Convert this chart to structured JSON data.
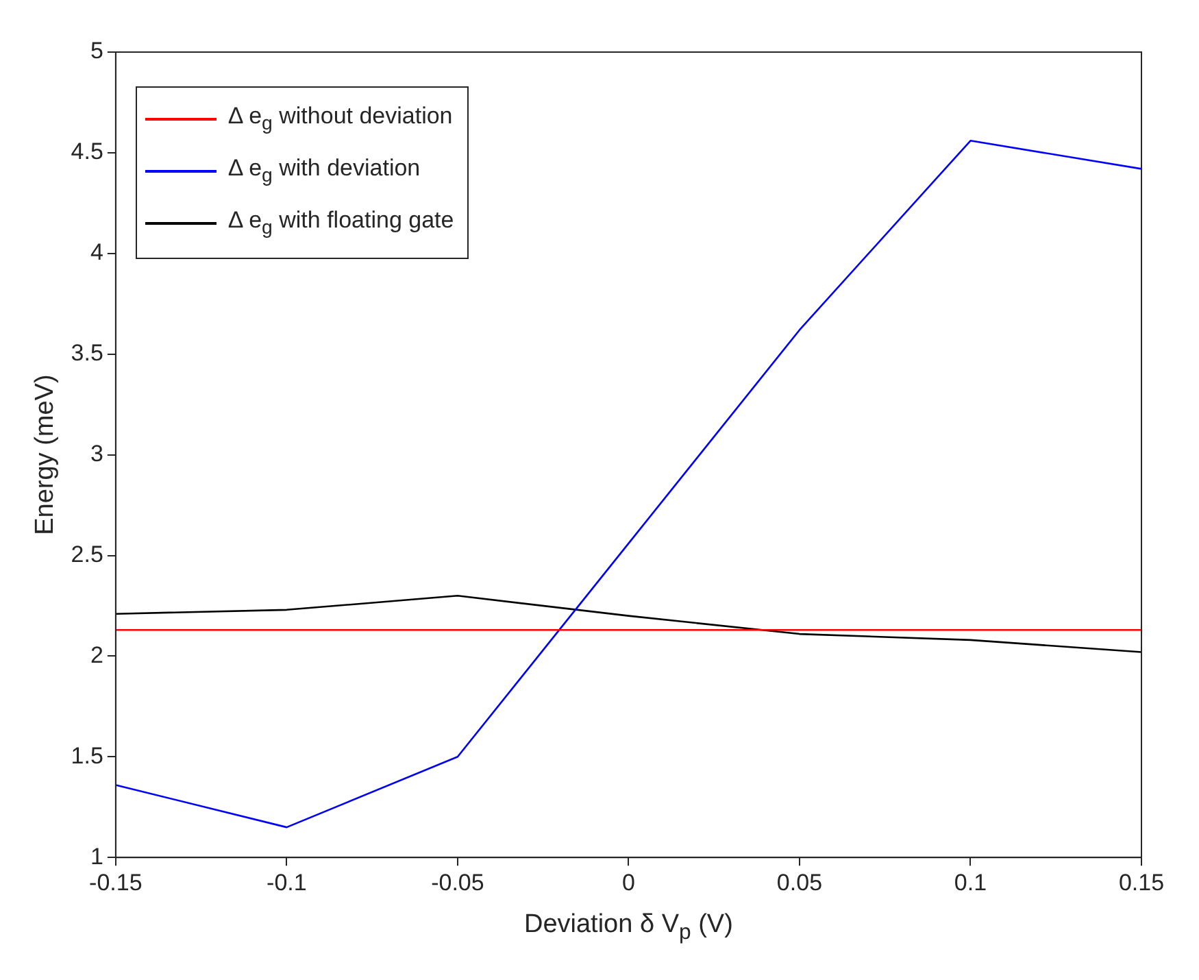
{
  "chart_data": {
    "type": "line",
    "xlabel": "Deviation δ V$_{p}$ (V)",
    "ylabel": "Energy (meV)",
    "x": [
      -0.15,
      -0.1,
      -0.05,
      0,
      0.05,
      0.1,
      0.15
    ],
    "xlim": [
      -0.15,
      0.15
    ],
    "xticks": [
      -0.15,
      -0.1,
      -0.05,
      0,
      0.05,
      0.1,
      0.15
    ],
    "ylim": [
      1,
      5
    ],
    "yticks": [
      1,
      1.5,
      2,
      2.5,
      3,
      3.5,
      4,
      4.5,
      5
    ],
    "grid": false,
    "legend": "top left",
    "marker": "none",
    "line_style": "solid",
    "series": [
      {
        "name": "Δ e$_{g}$ without deviation",
        "color": "#ff0000",
        "values": [
          2.13,
          2.13,
          2.13,
          2.13,
          2.13,
          2.13,
          2.13
        ]
      },
      {
        "name": "Δ e$_{g}$ with deviation",
        "color": "#0000ff",
        "values": [
          1.36,
          1.15,
          1.5,
          2.56,
          3.62,
          4.56,
          4.42
        ]
      },
      {
        "name": "Δ e$_{g}$ with floating gate",
        "color": "#000000",
        "values": [
          2.21,
          2.23,
          2.3,
          2.2,
          2.11,
          2.08,
          2.02
        ]
      }
    ]
  }
}
